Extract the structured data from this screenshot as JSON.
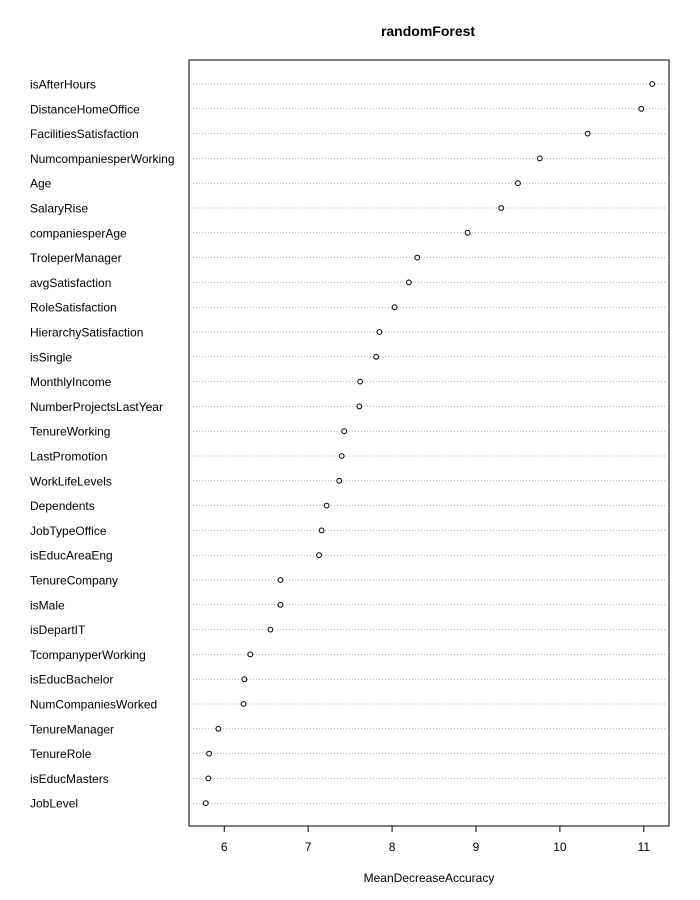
{
  "chart_data": {
    "type": "scatter",
    "title": "randomForest",
    "xlabel": "MeanDecreaseAccuracy",
    "ylabel": "",
    "xlim": [
      5.58,
      11.3
    ],
    "x_ticks": [
      "6",
      "7",
      "8",
      "9",
      "10",
      "11"
    ],
    "grid": "horizontal dotted",
    "legend": "none",
    "colors": {
      "points": "#000000",
      "grid": "#b0b0b0",
      "frame": "#000000"
    },
    "categories": [
      "isAfterHours",
      "DistanceHomeOffice",
      "FacilitiesSatisfaction",
      "NumcompaniesperWorking",
      "Age",
      "SalaryRise",
      "companiesperAge",
      "TroleperManager",
      "avgSatisfaction",
      "RoleSatisfaction",
      "HierarchySatisfaction",
      "isSingle",
      "MonthlyIncome",
      "NumberProjectsLastYear",
      "TenureWorking",
      "LastPromotion",
      "WorkLifeLevels",
      "Dependents",
      "JobTypeOffice",
      "isEducAreaEng",
      "TenureCompany",
      "isMale",
      "isDepartIT",
      "TcompanyperWorking",
      "isEducBachelor",
      "NumCompaniesWorked",
      "TenureManager",
      "TenureRole",
      "isEducMasters",
      "JobLevel"
    ],
    "values": [
      11.1,
      10.97,
      10.33,
      9.76,
      9.5,
      9.3,
      8.9,
      8.3,
      8.2,
      8.03,
      7.85,
      7.81,
      7.62,
      7.61,
      7.43,
      7.4,
      7.37,
      7.22,
      7.16,
      7.13,
      6.67,
      6.67,
      6.55,
      6.31,
      6.24,
      6.23,
      5.93,
      5.82,
      5.81,
      5.78
    ]
  }
}
